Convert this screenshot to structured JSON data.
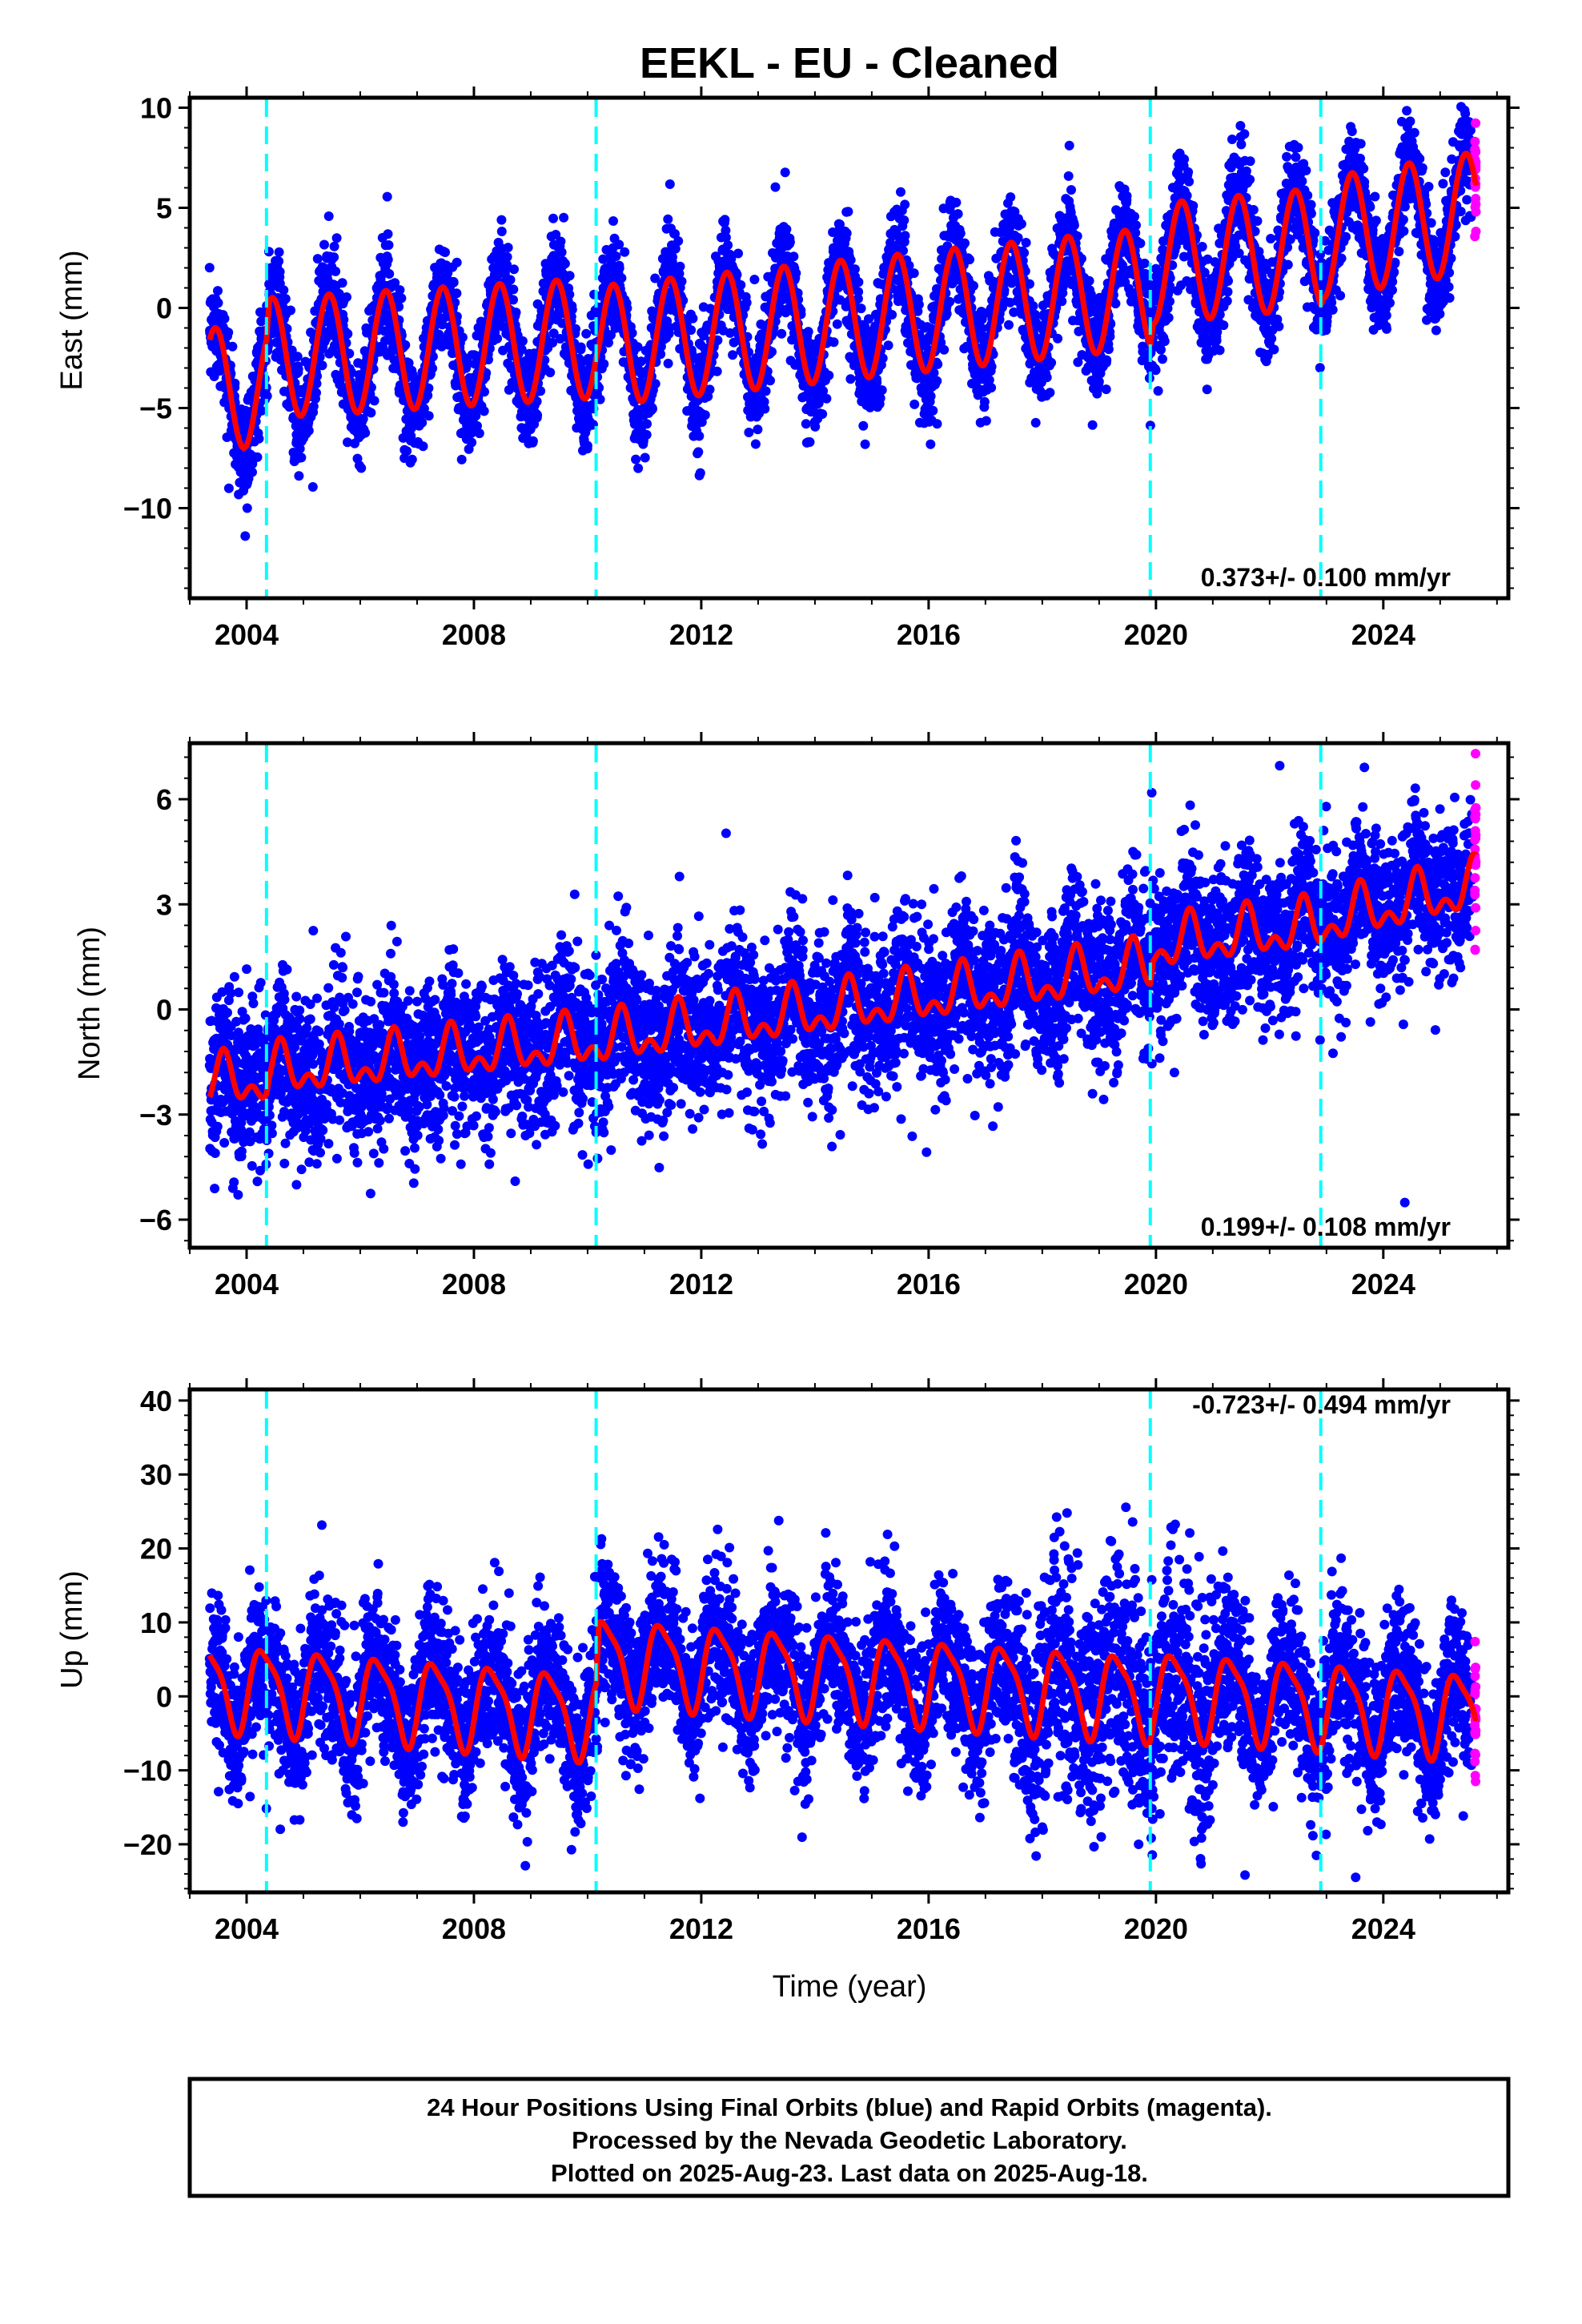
{
  "chart_data": {
    "type": "scatter",
    "title": "EEKL  - EU - Cleaned",
    "xlabel": "Time (year)",
    "xlim": [
      2003.0,
      2026.2
    ],
    "x_ticks": [
      2004,
      2008,
      2012,
      2016,
      2020,
      2024
    ],
    "step_lines_x": [
      2004.35,
      2010.15,
      2019.9,
      2022.9
    ],
    "colors": {
      "final": "#0000ff",
      "rapid": "#ff00ff",
      "model": "#ff0000",
      "steps": "#00ffff"
    },
    "data_start": 2003.35,
    "data_end": 2025.63,
    "rapid_start": 2025.45,
    "panels": [
      {
        "name": "East",
        "ylabel": "East (mm)",
        "ylim": [
          -14.5,
          10.5
        ],
        "yticks": [
          -10,
          -5,
          0,
          5,
          10
        ],
        "rate_label": "0.373+/- 0.100 mm/yr",
        "model_trend": [
          [
            2003.35,
            -4.0
          ],
          [
            2004.35,
            -4.0
          ],
          [
            2004.4,
            -2.5
          ],
          [
            2010.15,
            -1.5
          ],
          [
            2010.2,
            -1.9
          ],
          [
            2019.9,
            1.0
          ],
          [
            2019.95,
            2.2
          ],
          [
            2022.9,
            3.0
          ],
          [
            2022.95,
            3.5
          ],
          [
            2025.63,
            4.8
          ]
        ],
        "seasonal_amplitude": 3.0,
        "scatter_std": 1.3
      },
      {
        "name": "North",
        "ylabel": "North (mm)",
        "ylim": [
          -6.8,
          7.6
        ],
        "yticks": [
          -6,
          -3,
          0,
          3,
          6
        ],
        "rate_label": "0.199+/- 0.108 mm/yr",
        "model_trend": [
          [
            2003.35,
            -2.1
          ],
          [
            2004.35,
            -2.0
          ],
          [
            2004.4,
            -1.8
          ],
          [
            2010.15,
            -0.9
          ],
          [
            2010.2,
            -0.9
          ],
          [
            2019.9,
            1.2
          ],
          [
            2019.95,
            1.8
          ],
          [
            2022.9,
            2.4
          ],
          [
            2022.95,
            2.5
          ],
          [
            2025.63,
            3.5
          ]
        ],
        "seasonal_amplitude": 0.8,
        "scatter_std": 1.1
      },
      {
        "name": "Up",
        "ylabel": "Up (mm)",
        "ylim": [
          -26.5,
          41.5
        ],
        "yticks": [
          -20,
          -10,
          0,
          10,
          20,
          30,
          40
        ],
        "rate_label": "-0.723+/- 0.494 mm/yr",
        "model_trend": [
          [
            2003.35,
            1.5
          ],
          [
            2004.35,
            1.0
          ],
          [
            2004.4,
            1.0
          ],
          [
            2010.15,
            -2.5
          ],
          [
            2010.2,
            5.0
          ],
          [
            2019.9,
            0.0
          ],
          [
            2019.95,
            0.5
          ],
          [
            2022.9,
            -1.0
          ],
          [
            2022.95,
            -1.0
          ],
          [
            2025.63,
            -2.5
          ]
        ],
        "seasonal_amplitude": 5.5,
        "scatter_std": 5.0
      }
    ]
  },
  "footer": {
    "line1": "24 Hour Positions Using Final Orbits (blue) and Rapid Orbits (magenta).",
    "line2": "Processed by the Nevada Geodetic Laboratory.",
    "line3": "Plotted on 2025-Aug-23. Last data on 2025-Aug-18."
  }
}
